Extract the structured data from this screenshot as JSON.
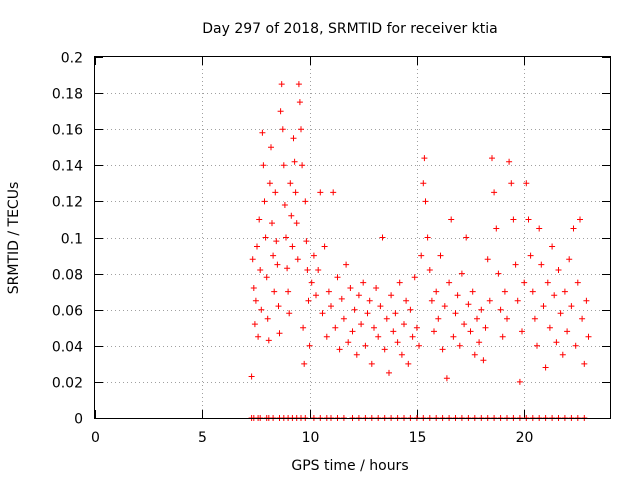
{
  "chart_data": {
    "type": "scatter",
    "title": "Day 297 of 2018, SRMTID for receiver ktia",
    "xlabel": "GPS time / hours",
    "ylabel": "SRMTID / TECUs",
    "xlim": [
      0,
      24
    ],
    "ylim": [
      0,
      0.2
    ],
    "x_ticks": [
      0,
      5,
      10,
      15,
      20
    ],
    "x_tick_labels": [
      "0",
      "5",
      "10",
      "15",
      "20"
    ],
    "y_ticks": [
      0,
      0.02,
      0.04,
      0.06,
      0.08,
      0.1,
      0.12,
      0.14,
      0.16,
      0.18,
      0.2
    ],
    "y_tick_labels": [
      "0",
      "0.02",
      "0.04",
      "0.06",
      "0.08",
      "0.1",
      "0.12",
      "0.14",
      "0.16",
      "0.18",
      "0.2"
    ],
    "grid": true,
    "marker": "+",
    "color": "#ff0000",
    "series": [
      {
        "name": "SRMTID",
        "points": [
          [
            7.3,
            0.023
          ],
          [
            7.35,
            0.088
          ],
          [
            7.4,
            0.072
          ],
          [
            7.45,
            0.052
          ],
          [
            7.5,
            0.065
          ],
          [
            7.55,
            0.095
          ],
          [
            7.6,
            0.045
          ],
          [
            7.65,
            0.11
          ],
          [
            7.7,
            0.082
          ],
          [
            7.75,
            0.06
          ],
          [
            7.8,
            0.158
          ],
          [
            7.85,
            0.14
          ],
          [
            7.9,
            0.12
          ],
          [
            7.95,
            0.1
          ],
          [
            8.0,
            0.078
          ],
          [
            8.05,
            0.055
          ],
          [
            8.1,
            0.043
          ],
          [
            8.15,
            0.13
          ],
          [
            8.2,
            0.15
          ],
          [
            8.25,
            0.108
          ],
          [
            8.3,
            0.09
          ],
          [
            8.35,
            0.07
          ],
          [
            8.4,
            0.125
          ],
          [
            8.45,
            0.098
          ],
          [
            8.5,
            0.085
          ],
          [
            8.55,
            0.062
          ],
          [
            8.6,
            0.047
          ],
          [
            8.65,
            0.17
          ],
          [
            8.7,
            0.185
          ],
          [
            8.75,
            0.16
          ],
          [
            8.8,
            0.14
          ],
          [
            8.85,
            0.118
          ],
          [
            8.9,
            0.1
          ],
          [
            8.95,
            0.083
          ],
          [
            9.0,
            0.07
          ],
          [
            9.05,
            0.058
          ],
          [
            9.1,
            0.13
          ],
          [
            9.15,
            0.112
          ],
          [
            9.2,
            0.095
          ],
          [
            9.25,
            0.155
          ],
          [
            9.3,
            0.142
          ],
          [
            9.35,
            0.125
          ],
          [
            9.4,
            0.108
          ],
          [
            9.45,
            0.088
          ],
          [
            9.5,
            0.185
          ],
          [
            9.55,
            0.175
          ],
          [
            9.6,
            0.16
          ],
          [
            9.65,
            0.14
          ],
          [
            9.7,
            0.05
          ],
          [
            9.75,
            0.03
          ],
          [
            9.8,
            0.12
          ],
          [
            9.85,
            0.098
          ],
          [
            9.9,
            0.082
          ],
          [
            9.95,
            0.065
          ],
          [
            10.0,
            0.04
          ],
          [
            10.1,
            0.075
          ],
          [
            10.2,
            0.09
          ],
          [
            10.3,
            0.068
          ],
          [
            10.4,
            0.082
          ],
          [
            10.5,
            0.125
          ],
          [
            10.6,
            0.058
          ],
          [
            10.7,
            0.095
          ],
          [
            10.8,
            0.045
          ],
          [
            10.9,
            0.07
          ],
          [
            11.0,
            0.062
          ],
          [
            11.1,
            0.125
          ],
          [
            11.2,
            0.05
          ],
          [
            11.3,
            0.078
          ],
          [
            11.4,
            0.038
          ],
          [
            11.5,
            0.066
          ],
          [
            11.6,
            0.055
          ],
          [
            11.7,
            0.085
          ],
          [
            11.8,
            0.042
          ],
          [
            11.9,
            0.072
          ],
          [
            12.0,
            0.048
          ],
          [
            12.1,
            0.06
          ],
          [
            12.2,
            0.035
          ],
          [
            12.3,
            0.068
          ],
          [
            12.4,
            0.052
          ],
          [
            12.5,
            0.075
          ],
          [
            12.6,
            0.04
          ],
          [
            12.7,
            0.058
          ],
          [
            12.8,
            0.065
          ],
          [
            12.9,
            0.03
          ],
          [
            13.0,
            0.05
          ],
          [
            13.1,
            0.072
          ],
          [
            13.2,
            0.045
          ],
          [
            13.3,
            0.062
          ],
          [
            13.4,
            0.1
          ],
          [
            13.5,
            0.038
          ],
          [
            13.6,
            0.055
          ],
          [
            13.7,
            0.025
          ],
          [
            13.8,
            0.068
          ],
          [
            13.9,
            0.048
          ],
          [
            14.0,
            0.058
          ],
          [
            14.1,
            0.042
          ],
          [
            14.2,
            0.075
          ],
          [
            14.3,
            0.035
          ],
          [
            14.4,
            0.052
          ],
          [
            14.5,
            0.065
          ],
          [
            14.6,
            0.03
          ],
          [
            14.7,
            0.06
          ],
          [
            14.8,
            0.045
          ],
          [
            14.9,
            0.078
          ],
          [
            15.0,
            0.05
          ],
          [
            15.1,
            0.04
          ],
          [
            15.2,
            0.09
          ],
          [
            15.3,
            0.13
          ],
          [
            15.35,
            0.144
          ],
          [
            15.4,
            0.12
          ],
          [
            15.5,
            0.1
          ],
          [
            15.6,
            0.082
          ],
          [
            15.7,
            0.065
          ],
          [
            15.8,
            0.048
          ],
          [
            15.9,
            0.07
          ],
          [
            16.0,
            0.055
          ],
          [
            16.1,
            0.09
          ],
          [
            16.2,
            0.038
          ],
          [
            16.3,
            0.062
          ],
          [
            16.4,
            0.022
          ],
          [
            16.5,
            0.075
          ],
          [
            16.6,
            0.11
          ],
          [
            16.7,
            0.045
          ],
          [
            16.8,
            0.058
          ],
          [
            16.9,
            0.068
          ],
          [
            17.0,
            0.04
          ],
          [
            17.1,
            0.08
          ],
          [
            17.2,
            0.052
          ],
          [
            17.3,
            0.1
          ],
          [
            17.4,
            0.063
          ],
          [
            17.5,
            0.048
          ],
          [
            17.6,
            0.07
          ],
          [
            17.7,
            0.035
          ],
          [
            17.8,
            0.055
          ],
          [
            17.9,
            0.042
          ],
          [
            18.0,
            0.06
          ],
          [
            18.1,
            0.032
          ],
          [
            18.2,
            0.05
          ],
          [
            18.3,
            0.088
          ],
          [
            18.4,
            0.065
          ],
          [
            18.5,
            0.144
          ],
          [
            18.6,
            0.125
          ],
          [
            18.7,
            0.105
          ],
          [
            18.8,
            0.08
          ],
          [
            18.9,
            0.06
          ],
          [
            19.0,
            0.045
          ],
          [
            19.1,
            0.07
          ],
          [
            19.2,
            0.055
          ],
          [
            19.3,
            0.142
          ],
          [
            19.4,
            0.13
          ],
          [
            19.5,
            0.11
          ],
          [
            19.6,
            0.085
          ],
          [
            19.7,
            0.065
          ],
          [
            19.8,
            0.02
          ],
          [
            19.9,
            0.048
          ],
          [
            20.0,
            0.075
          ],
          [
            20.1,
            0.13
          ],
          [
            20.2,
            0.11
          ],
          [
            20.3,
            0.09
          ],
          [
            20.4,
            0.07
          ],
          [
            20.5,
            0.055
          ],
          [
            20.6,
            0.04
          ],
          [
            20.7,
            0.105
          ],
          [
            20.8,
            0.085
          ],
          [
            20.9,
            0.062
          ],
          [
            21.0,
            0.028
          ],
          [
            21.1,
            0.075
          ],
          [
            21.2,
            0.05
          ],
          [
            21.3,
            0.095
          ],
          [
            21.4,
            0.068
          ],
          [
            21.5,
            0.042
          ],
          [
            21.6,
            0.082
          ],
          [
            21.7,
            0.058
          ],
          [
            21.8,
            0.035
          ],
          [
            21.9,
            0.07
          ],
          [
            22.0,
            0.048
          ],
          [
            22.1,
            0.088
          ],
          [
            22.2,
            0.062
          ],
          [
            22.3,
            0.105
          ],
          [
            22.4,
            0.04
          ],
          [
            22.5,
            0.075
          ],
          [
            22.6,
            0.11
          ],
          [
            22.7,
            0.055
          ],
          [
            22.8,
            0.03
          ],
          [
            22.9,
            0.065
          ],
          [
            23.0,
            0.045
          ],
          [
            7.3,
            0
          ],
          [
            7.4,
            0
          ],
          [
            7.6,
            0
          ],
          [
            7.7,
            0
          ],
          [
            8.0,
            0
          ],
          [
            8.1,
            0
          ],
          [
            8.3,
            0
          ],
          [
            8.6,
            0
          ],
          [
            8.8,
            0
          ],
          [
            9.0,
            0
          ],
          [
            9.2,
            0
          ],
          [
            9.4,
            0
          ],
          [
            9.6,
            0
          ],
          [
            9.8,
            0
          ],
          [
            10.2,
            0
          ],
          [
            10.5,
            0
          ],
          [
            10.8,
            0
          ],
          [
            11.0,
            0
          ],
          [
            11.3,
            0
          ],
          [
            11.6,
            0
          ],
          [
            12.0,
            0
          ],
          [
            12.3,
            0
          ],
          [
            12.6,
            0
          ],
          [
            12.9,
            0
          ],
          [
            13.2,
            0
          ],
          [
            13.5,
            0
          ],
          [
            13.8,
            0
          ],
          [
            14.1,
            0
          ],
          [
            14.4,
            0
          ],
          [
            14.7,
            0
          ],
          [
            15.0,
            0
          ],
          [
            15.3,
            0
          ],
          [
            15.6,
            0
          ],
          [
            15.9,
            0
          ],
          [
            16.2,
            0
          ],
          [
            16.5,
            0
          ],
          [
            16.8,
            0
          ],
          [
            17.1,
            0
          ],
          [
            17.4,
            0
          ],
          [
            17.7,
            0
          ],
          [
            18.0,
            0
          ],
          [
            18.3,
            0
          ],
          [
            18.6,
            0
          ],
          [
            18.9,
            0
          ],
          [
            19.2,
            0
          ],
          [
            19.5,
            0
          ],
          [
            19.8,
            0
          ],
          [
            20.1,
            0
          ],
          [
            20.4,
            0
          ],
          [
            20.7,
            0
          ],
          [
            21.0,
            0
          ],
          [
            21.3,
            0
          ],
          [
            21.6,
            0
          ],
          [
            21.9,
            0
          ],
          [
            22.2,
            0
          ],
          [
            22.5,
            0
          ],
          [
            22.8,
            0
          ]
        ]
      }
    ]
  }
}
